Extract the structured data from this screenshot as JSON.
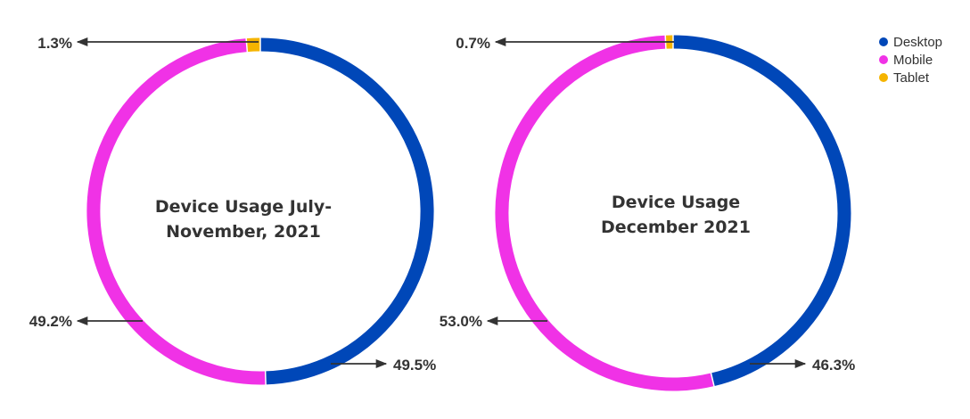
{
  "colors": {
    "Desktop": "#0047B8",
    "Mobile": "#F032E6",
    "Tablet": "#F5B400",
    "text": "#333333",
    "arrow": "#333333"
  },
  "legend": {
    "position": "top-right",
    "items": [
      {
        "label": "Desktop",
        "color": "#0047B8"
      },
      {
        "label": "Mobile",
        "color": "#F032E6"
      },
      {
        "label": "Tablet",
        "color": "#F5B400"
      }
    ]
  },
  "chart_data": [
    {
      "type": "pie",
      "subtype": "donut",
      "title": [
        "Device Usage July-",
        "November, 2021"
      ],
      "categories": [
        "Desktop",
        "Mobile",
        "Tablet"
      ],
      "values": [
        49.5,
        49.2,
        1.3
      ],
      "labels": [
        "49.5%",
        "49.2%",
        "1.3%"
      ]
    },
    {
      "type": "pie",
      "subtype": "donut",
      "title": [
        "Device Usage",
        "December 2021"
      ],
      "categories": [
        "Desktop",
        "Mobile",
        "Tablet"
      ],
      "values": [
        46.3,
        53.0,
        0.7
      ],
      "labels": [
        "46.3%",
        "53.0%",
        "0.7%"
      ]
    }
  ]
}
